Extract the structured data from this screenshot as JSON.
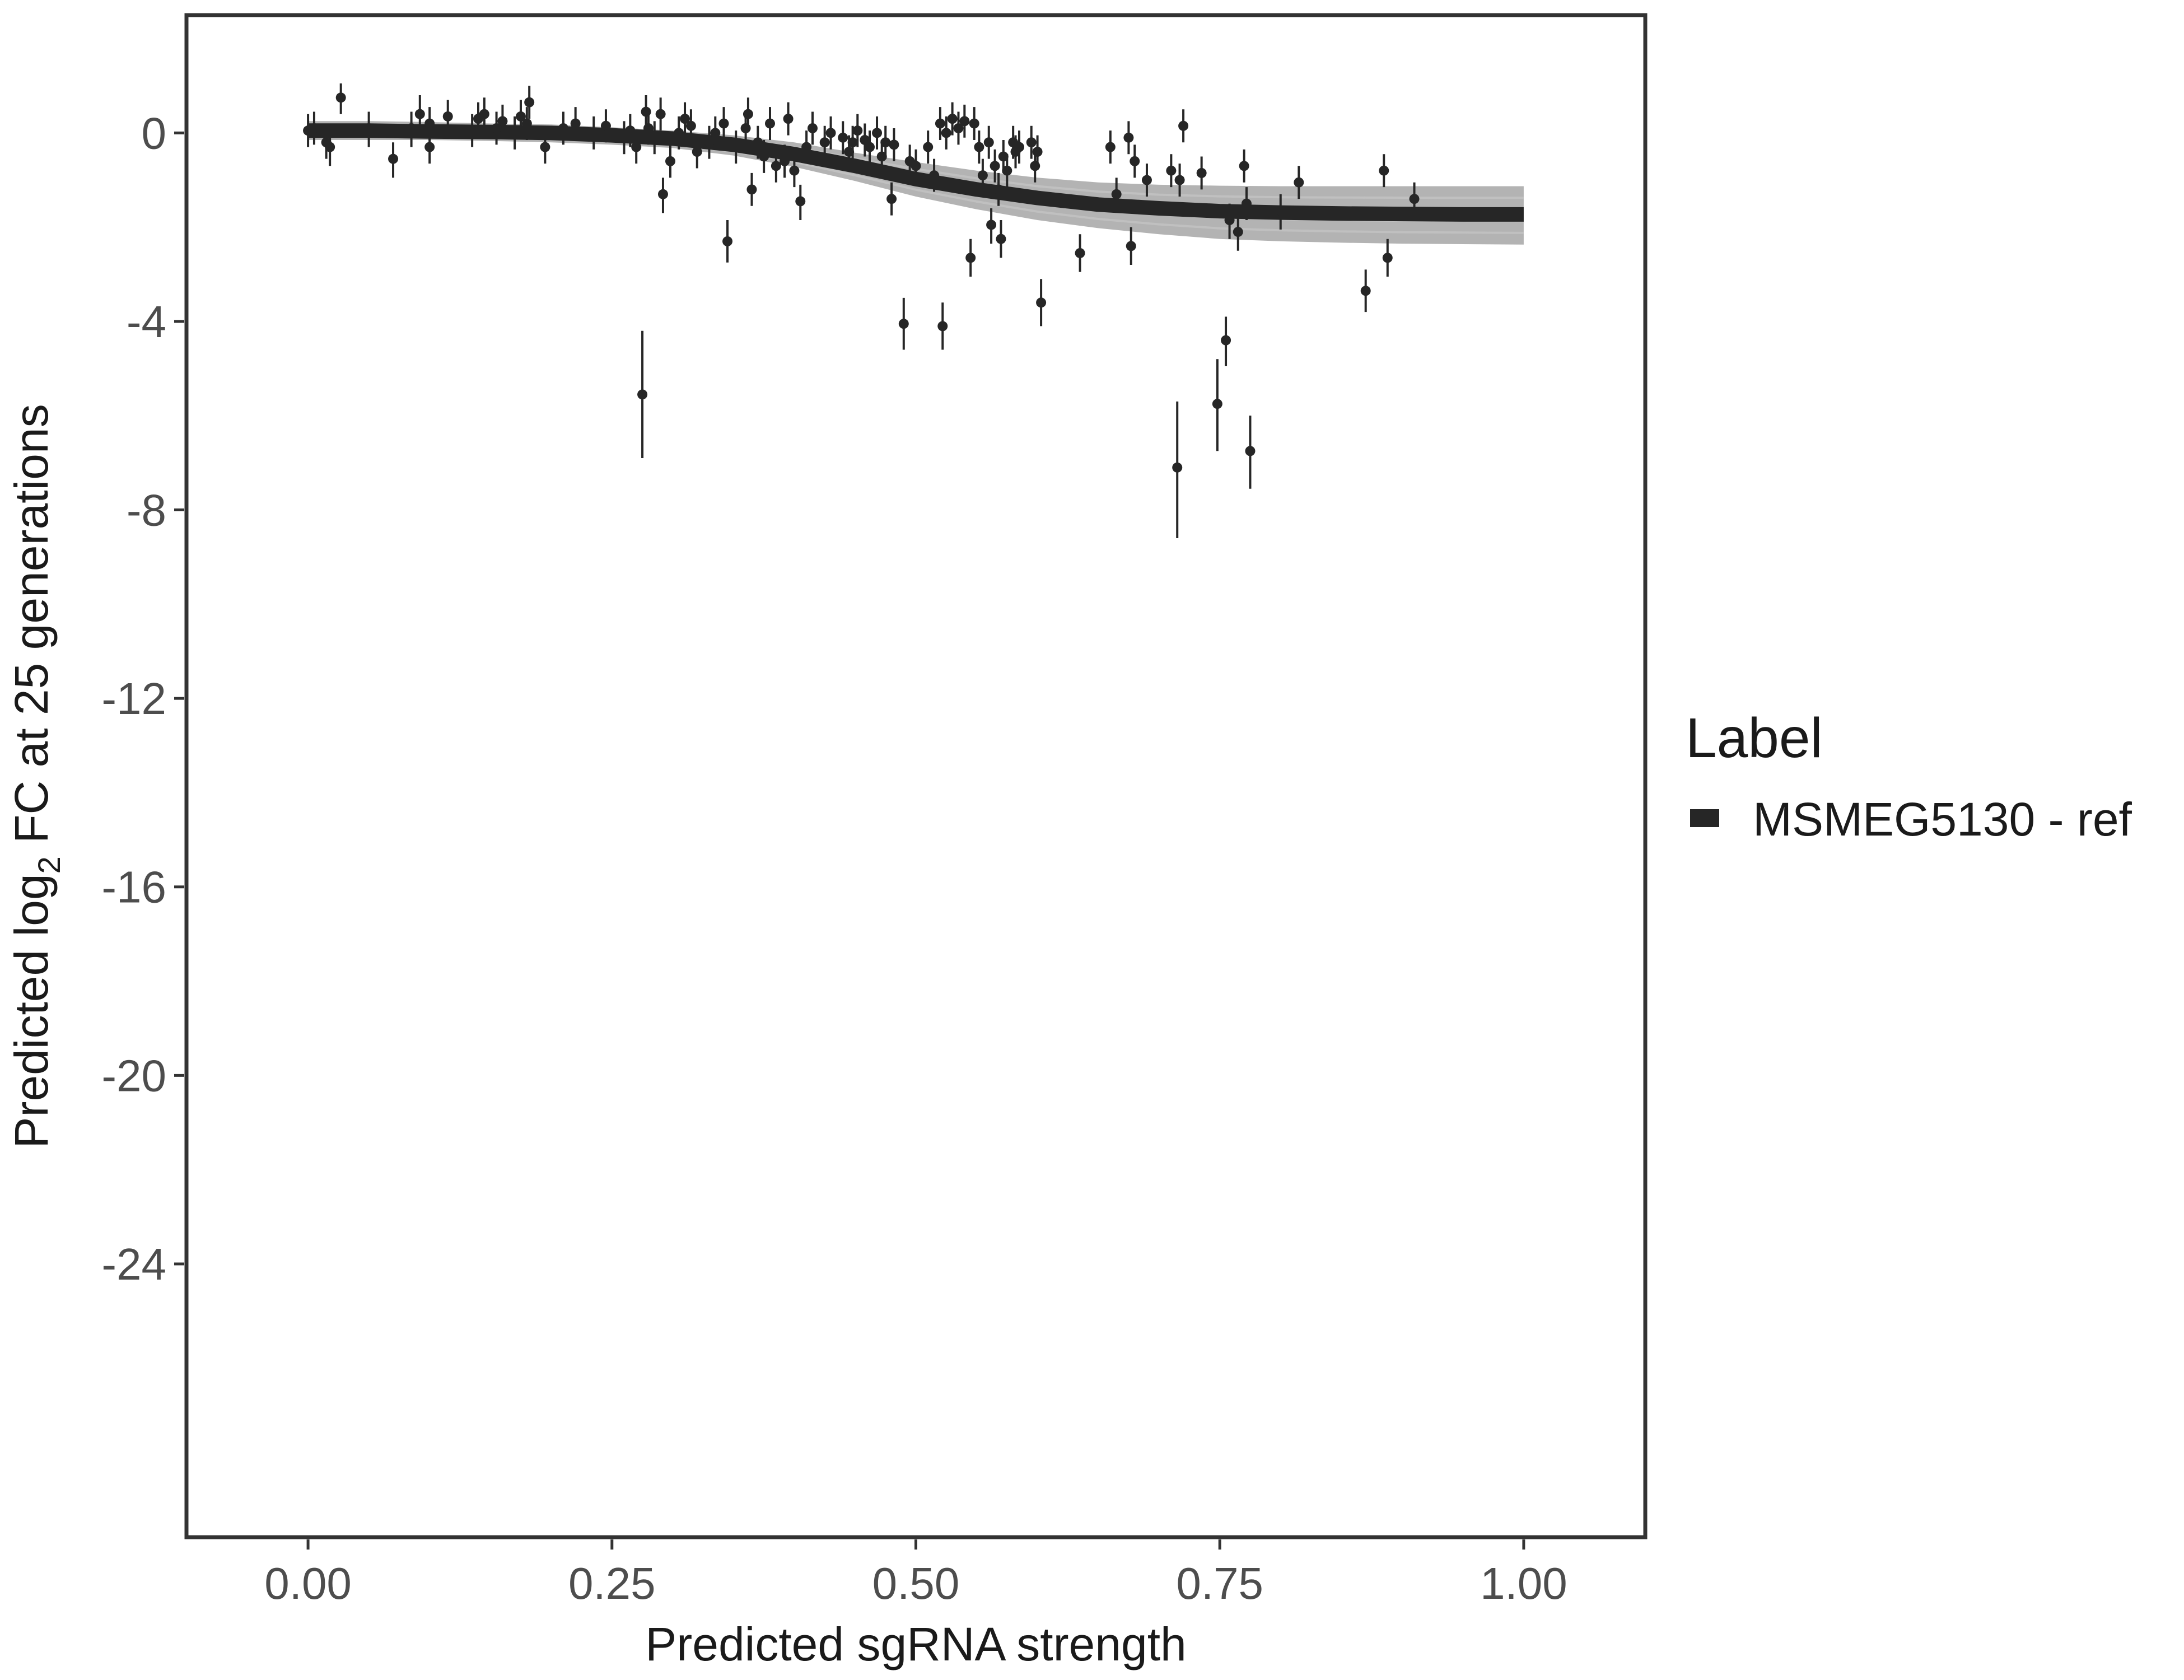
{
  "chart_data": {
    "type": "scatter",
    "xlabel": "Predicted sgRNA strength",
    "ylabel": {
      "prefix": "Predicted  log",
      "subscript": "2",
      "suffix": " FC at 25 generations"
    },
    "xlim": [
      -0.1,
      1.1
    ],
    "ylim": [
      -29.8,
      2.5
    ],
    "x_ticks": [
      0,
      0.25,
      0.5,
      0.75,
      1.0
    ],
    "x_tick_labels": [
      "0.00",
      "0.25",
      "0.50",
      "0.75",
      "1.00"
    ],
    "y_ticks": [
      0,
      -4,
      -8,
      -12,
      -16,
      -20,
      -24
    ],
    "y_tick_labels": [
      "0",
      "-4",
      "-8",
      "-12",
      "-16",
      "-20",
      "-24"
    ],
    "grid": false,
    "legend": {
      "title": "Label",
      "position": "right",
      "entries": [
        {
          "label": "MSMEG5130 - ref",
          "color": "#262626"
        }
      ]
    },
    "fit_curve": {
      "name": "MSMEG5130 - ref",
      "x": [
        0.0,
        0.05,
        0.1,
        0.15,
        0.2,
        0.25,
        0.3,
        0.35,
        0.4,
        0.45,
        0.5,
        0.55,
        0.6,
        0.65,
        0.7,
        0.75,
        0.8,
        0.85,
        0.9,
        0.95,
        1.0
      ],
      "y": [
        0.05,
        0.05,
        0.03,
        0.02,
        0.0,
        -0.05,
        -0.12,
        -0.25,
        -0.45,
        -0.7,
        -0.98,
        -1.2,
        -1.38,
        -1.52,
        -1.6,
        -1.66,
        -1.69,
        -1.71,
        -1.72,
        -1.73,
        -1.73
      ],
      "band_upper": [
        0.25,
        0.25,
        0.23,
        0.2,
        0.18,
        0.12,
        0.05,
        -0.05,
        -0.2,
        -0.42,
        -0.62,
        -0.8,
        -0.95,
        -1.05,
        -1.1,
        -1.12,
        -1.13,
        -1.13,
        -1.13,
        -1.13,
        -1.13
      ],
      "band_lower": [
        -0.15,
        -0.15,
        -0.15,
        -0.17,
        -0.2,
        -0.25,
        -0.32,
        -0.48,
        -0.72,
        -1.02,
        -1.35,
        -1.62,
        -1.85,
        -2.02,
        -2.15,
        -2.25,
        -2.3,
        -2.33,
        -2.35,
        -2.36,
        -2.37
      ]
    },
    "points": [
      {
        "x": 0.0,
        "y": 0.05,
        "lo": -0.3,
        "hi": 0.4
      },
      {
        "x": 0.005,
        "y": 0.1,
        "lo": -0.25,
        "hi": 0.45
      },
      {
        "x": 0.015,
        "y": -0.2,
        "lo": -0.55,
        "hi": 0.15
      },
      {
        "x": 0.018,
        "y": -0.3,
        "lo": -0.7,
        "hi": 0.1
      },
      {
        "x": 0.027,
        "y": 0.75,
        "lo": 0.4,
        "hi": 1.05
      },
      {
        "x": 0.05,
        "y": 0.1,
        "lo": -0.3,
        "hi": 0.45
      },
      {
        "x": 0.07,
        "y": -0.55,
        "lo": -0.95,
        "hi": -0.2
      },
      {
        "x": 0.085,
        "y": 0.1,
        "lo": -0.3,
        "hi": 0.45
      },
      {
        "x": 0.092,
        "y": 0.4,
        "lo": 0.05,
        "hi": 0.8
      },
      {
        "x": 0.1,
        "y": -0.3,
        "lo": -0.65,
        "hi": 0.05
      },
      {
        "x": 0.1,
        "y": 0.2,
        "lo": -0.15,
        "hi": 0.55
      },
      {
        "x": 0.115,
        "y": 0.35,
        "lo": 0.0,
        "hi": 0.7
      },
      {
        "x": 0.135,
        "y": 0.05,
        "lo": -0.3,
        "hi": 0.4
      },
      {
        "x": 0.14,
        "y": 0.3,
        "lo": -0.05,
        "hi": 0.65
      },
      {
        "x": 0.145,
        "y": 0.4,
        "lo": 0.05,
        "hi": 0.75
      },
      {
        "x": 0.155,
        "y": 0.1,
        "lo": -0.25,
        "hi": 0.45
      },
      {
        "x": 0.16,
        "y": 0.25,
        "lo": -0.1,
        "hi": 0.6
      },
      {
        "x": 0.17,
        "y": 0.0,
        "lo": -0.35,
        "hi": 0.35
      },
      {
        "x": 0.175,
        "y": 0.35,
        "lo": 0.0,
        "hi": 0.7
      },
      {
        "x": 0.18,
        "y": 0.2,
        "lo": -0.15,
        "hi": 0.55
      },
      {
        "x": 0.182,
        "y": 0.65,
        "lo": 0.3,
        "hi": 1.0
      },
      {
        "x": 0.195,
        "y": -0.3,
        "lo": -0.65,
        "hi": 0.05
      },
      {
        "x": 0.21,
        "y": 0.1,
        "lo": -0.25,
        "hi": 0.45
      },
      {
        "x": 0.22,
        "y": 0.2,
        "lo": -0.15,
        "hi": 0.55
      },
      {
        "x": 0.235,
        "y": 0.0,
        "lo": -0.35,
        "hi": 0.35
      },
      {
        "x": 0.245,
        "y": 0.15,
        "lo": -0.2,
        "hi": 0.5
      },
      {
        "x": 0.26,
        "y": -0.1,
        "lo": -0.45,
        "hi": 0.25
      },
      {
        "x": 0.265,
        "y": 0.05,
        "lo": -0.3,
        "hi": 0.4
      },
      {
        "x": 0.27,
        "y": -0.3,
        "lo": -0.65,
        "hi": 0.05
      },
      {
        "x": 0.275,
        "y": -5.55,
        "lo": -6.9,
        "hi": -4.2
      },
      {
        "x": 0.278,
        "y": 0.45,
        "lo": 0.1,
        "hi": 0.8
      },
      {
        "x": 0.28,
        "y": 0.1,
        "lo": -0.25,
        "hi": 0.45
      },
      {
        "x": 0.285,
        "y": -0.1,
        "lo": -0.45,
        "hi": 0.25
      },
      {
        "x": 0.29,
        "y": 0.4,
        "lo": 0.05,
        "hi": 0.75
      },
      {
        "x": 0.292,
        "y": -1.3,
        "lo": -1.7,
        "hi": -0.95
      },
      {
        "x": 0.298,
        "y": -0.6,
        "lo": -0.95,
        "hi": -0.25
      },
      {
        "x": 0.305,
        "y": 0.0,
        "lo": -0.35,
        "hi": 0.35
      },
      {
        "x": 0.31,
        "y": 0.3,
        "lo": -0.05,
        "hi": 0.65
      },
      {
        "x": 0.315,
        "y": 0.15,
        "lo": -0.2,
        "hi": 0.5
      },
      {
        "x": 0.32,
        "y": -0.4,
        "lo": -0.75,
        "hi": -0.05
      },
      {
        "x": 0.33,
        "y": -0.2,
        "lo": -0.55,
        "hi": 0.15
      },
      {
        "x": 0.335,
        "y": 0.0,
        "lo": -0.35,
        "hi": 0.35
      },
      {
        "x": 0.342,
        "y": 0.2,
        "lo": -0.15,
        "hi": 0.55
      },
      {
        "x": 0.345,
        "y": -2.3,
        "lo": -2.75,
        "hi": -1.85
      },
      {
        "x": 0.352,
        "y": -0.3,
        "lo": -0.65,
        "hi": 0.05
      },
      {
        "x": 0.36,
        "y": 0.1,
        "lo": -0.25,
        "hi": 0.45
      },
      {
        "x": 0.362,
        "y": 0.4,
        "lo": 0.05,
        "hi": 0.75
      },
      {
        "x": 0.365,
        "y": -1.2,
        "lo": -1.55,
        "hi": -0.85
      },
      {
        "x": 0.37,
        "y": -0.2,
        "lo": -0.55,
        "hi": 0.15
      },
      {
        "x": 0.375,
        "y": -0.5,
        "lo": -0.85,
        "hi": -0.15
      },
      {
        "x": 0.38,
        "y": 0.2,
        "lo": -0.15,
        "hi": 0.55
      },
      {
        "x": 0.385,
        "y": -0.7,
        "lo": -1.05,
        "hi": -0.35
      },
      {
        "x": 0.392,
        "y": -0.6,
        "lo": -0.95,
        "hi": -0.25
      },
      {
        "x": 0.395,
        "y": 0.3,
        "lo": -0.05,
        "hi": 0.65
      },
      {
        "x": 0.4,
        "y": -0.8,
        "lo": -1.15,
        "hi": -0.45
      },
      {
        "x": 0.405,
        "y": -1.45,
        "lo": -1.85,
        "hi": -1.1
      },
      {
        "x": 0.41,
        "y": -0.3,
        "lo": -0.65,
        "hi": 0.05
      },
      {
        "x": 0.415,
        "y": 0.1,
        "lo": -0.25,
        "hi": 0.45
      },
      {
        "x": 0.425,
        "y": -0.2,
        "lo": -0.55,
        "hi": 0.15
      },
      {
        "x": 0.43,
        "y": 0.0,
        "lo": -0.35,
        "hi": 0.35
      },
      {
        "x": 0.44,
        "y": -0.1,
        "lo": -0.45,
        "hi": 0.25
      },
      {
        "x": 0.445,
        "y": -0.4,
        "lo": -0.75,
        "hi": -0.05
      },
      {
        "x": 0.448,
        "y": -0.2,
        "lo": -0.55,
        "hi": 0.15
      },
      {
        "x": 0.452,
        "y": 0.05,
        "lo": -0.3,
        "hi": 0.4
      },
      {
        "x": 0.458,
        "y": -0.15,
        "lo": -0.5,
        "hi": 0.2
      },
      {
        "x": 0.462,
        "y": -0.3,
        "lo": -0.65,
        "hi": 0.05
      },
      {
        "x": 0.468,
        "y": 0.0,
        "lo": -0.35,
        "hi": 0.35
      },
      {
        "x": 0.472,
        "y": -0.5,
        "lo": -0.85,
        "hi": -0.15
      },
      {
        "x": 0.475,
        "y": -0.2,
        "lo": -0.55,
        "hi": 0.15
      },
      {
        "x": 0.48,
        "y": -1.4,
        "lo": -1.75,
        "hi": -1.05
      },
      {
        "x": 0.482,
        "y": -0.25,
        "lo": -0.6,
        "hi": 0.1
      },
      {
        "x": 0.49,
        "y": -4.05,
        "lo": -4.6,
        "hi": -3.5
      },
      {
        "x": 0.495,
        "y": -0.6,
        "lo": -0.95,
        "hi": -0.25
      },
      {
        "x": 0.5,
        "y": -0.7,
        "lo": -1.05,
        "hi": -0.35
      },
      {
        "x": 0.51,
        "y": -0.3,
        "lo": -0.65,
        "hi": 0.05
      },
      {
        "x": 0.515,
        "y": -0.9,
        "lo": -1.25,
        "hi": -0.55
      },
      {
        "x": 0.52,
        "y": 0.2,
        "lo": -0.15,
        "hi": 0.55
      },
      {
        "x": 0.522,
        "y": -4.1,
        "lo": -4.6,
        "hi": -3.6
      },
      {
        "x": 0.525,
        "y": 0.0,
        "lo": -0.35,
        "hi": 0.35
      },
      {
        "x": 0.53,
        "y": 0.3,
        "lo": -0.05,
        "hi": 0.65
      },
      {
        "x": 0.535,
        "y": 0.1,
        "lo": -0.25,
        "hi": 0.45
      },
      {
        "x": 0.54,
        "y": 0.25,
        "lo": -0.1,
        "hi": 0.6
      },
      {
        "x": 0.545,
        "y": -2.65,
        "lo": -3.05,
        "hi": -2.25
      },
      {
        "x": 0.548,
        "y": 0.2,
        "lo": -0.15,
        "hi": 0.55
      },
      {
        "x": 0.552,
        "y": -0.3,
        "lo": -0.65,
        "hi": 0.05
      },
      {
        "x": 0.555,
        "y": -0.9,
        "lo": -1.25,
        "hi": -0.55
      },
      {
        "x": 0.56,
        "y": -0.2,
        "lo": -0.55,
        "hi": 0.15
      },
      {
        "x": 0.562,
        "y": -1.95,
        "lo": -2.35,
        "hi": -1.6
      },
      {
        "x": 0.565,
        "y": -0.7,
        "lo": -1.05,
        "hi": -0.35
      },
      {
        "x": 0.568,
        "y": -1.2,
        "lo": -1.55,
        "hi": -0.85
      },
      {
        "x": 0.57,
        "y": -2.25,
        "lo": -2.65,
        "hi": -1.85
      },
      {
        "x": 0.572,
        "y": -0.5,
        "lo": -0.85,
        "hi": -0.15
      },
      {
        "x": 0.575,
        "y": -0.8,
        "lo": -1.15,
        "hi": -0.45
      },
      {
        "x": 0.58,
        "y": -0.2,
        "lo": -0.55,
        "hi": 0.15
      },
      {
        "x": 0.582,
        "y": -0.4,
        "lo": -0.75,
        "hi": -0.05
      },
      {
        "x": 0.585,
        "y": -0.3,
        "lo": -0.65,
        "hi": 0.05
      },
      {
        "x": 0.595,
        "y": -0.2,
        "lo": -0.55,
        "hi": 0.15
      },
      {
        "x": 0.598,
        "y": -0.7,
        "lo": -1.05,
        "hi": -0.35
      },
      {
        "x": 0.6,
        "y": -0.4,
        "lo": -0.75,
        "hi": -0.05
      },
      {
        "x": 0.603,
        "y": -3.6,
        "lo": -4.1,
        "hi": -3.1
      },
      {
        "x": 0.635,
        "y": -2.55,
        "lo": -2.95,
        "hi": -2.15
      },
      {
        "x": 0.66,
        "y": -0.3,
        "lo": -0.65,
        "hi": 0.05
      },
      {
        "x": 0.665,
        "y": -1.3,
        "lo": -1.65,
        "hi": -0.95
      },
      {
        "x": 0.675,
        "y": -0.1,
        "lo": -0.45,
        "hi": 0.25
      },
      {
        "x": 0.677,
        "y": -2.4,
        "lo": -2.8,
        "hi": -2.0
      },
      {
        "x": 0.68,
        "y": -0.6,
        "lo": -0.95,
        "hi": -0.25
      },
      {
        "x": 0.69,
        "y": -1.0,
        "lo": -1.35,
        "hi": -0.65
      },
      {
        "x": 0.71,
        "y": -0.8,
        "lo": -1.15,
        "hi": -0.45
      },
      {
        "x": 0.715,
        "y": -7.1,
        "lo": -8.6,
        "hi": -5.7
      },
      {
        "x": 0.717,
        "y": -1.0,
        "lo": -1.35,
        "hi": -0.65
      },
      {
        "x": 0.72,
        "y": 0.15,
        "lo": -0.2,
        "hi": 0.5
      },
      {
        "x": 0.735,
        "y": -0.85,
        "lo": -1.2,
        "hi": -0.5
      },
      {
        "x": 0.748,
        "y": -5.75,
        "lo": -6.75,
        "hi": -4.8
      },
      {
        "x": 0.755,
        "y": -4.4,
        "lo": -4.95,
        "hi": -3.9
      },
      {
        "x": 0.758,
        "y": -1.85,
        "lo": -2.25,
        "hi": -1.5
      },
      {
        "x": 0.765,
        "y": -2.1,
        "lo": -2.5,
        "hi": -1.7
      },
      {
        "x": 0.77,
        "y": -0.7,
        "lo": -1.05,
        "hi": -0.35
      },
      {
        "x": 0.772,
        "y": -1.5,
        "lo": -1.85,
        "hi": -1.15
      },
      {
        "x": 0.775,
        "y": -6.75,
        "lo": -7.55,
        "hi": -6.0
      },
      {
        "x": 0.8,
        "y": -1.65,
        "lo": -2.05,
        "hi": -1.3
      },
      {
        "x": 0.815,
        "y": -1.05,
        "lo": -1.4,
        "hi": -0.7
      },
      {
        "x": 0.87,
        "y": -3.35,
        "lo": -3.8,
        "hi": -2.9
      },
      {
        "x": 0.885,
        "y": -0.8,
        "lo": -1.15,
        "hi": -0.45
      },
      {
        "x": 0.888,
        "y": -2.65,
        "lo": -3.05,
        "hi": -2.25
      },
      {
        "x": 0.91,
        "y": -1.4,
        "lo": -1.75,
        "hi": -1.05
      }
    ]
  }
}
